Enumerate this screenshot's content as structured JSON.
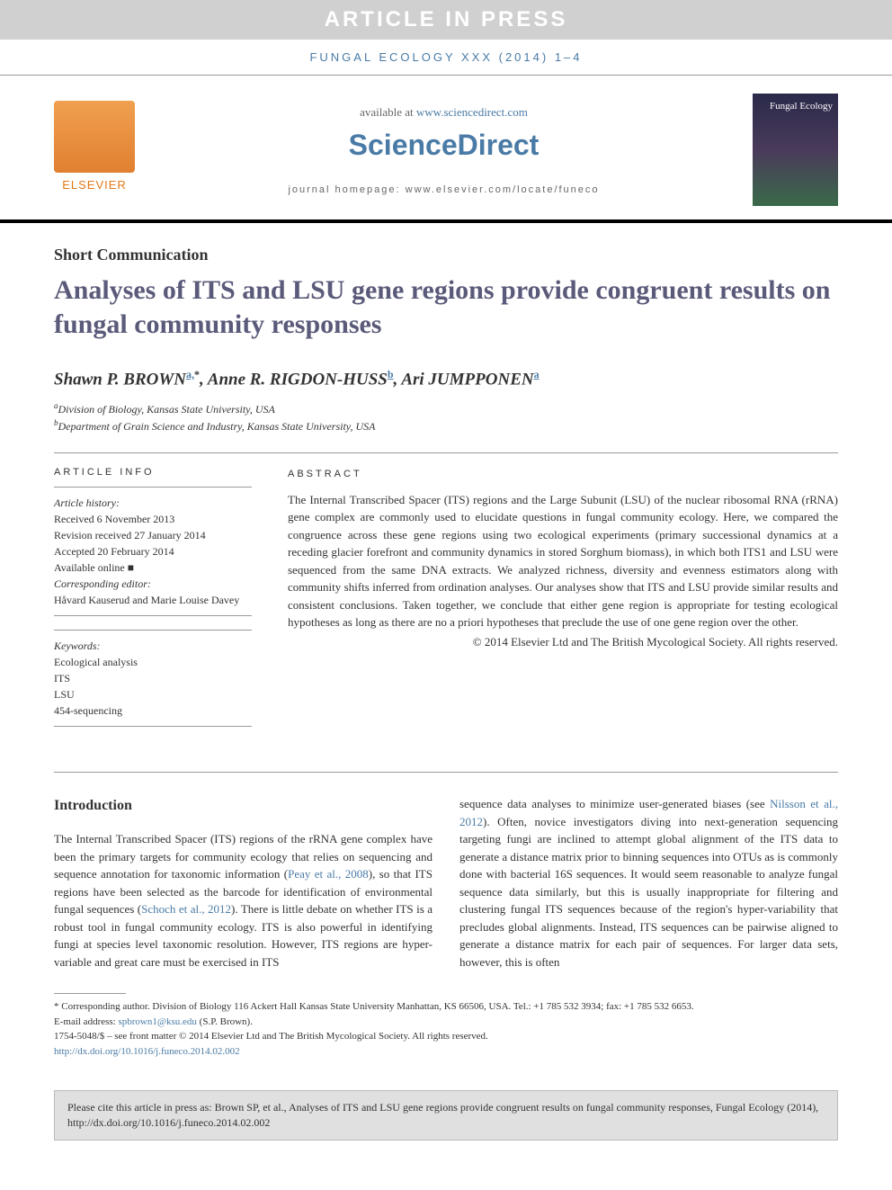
{
  "banner": {
    "in_press": "ARTICLE IN PRESS",
    "journal_ref": "FUNGAL ECOLOGY XXX (2014) 1–4"
  },
  "header": {
    "available_prefix": "available at ",
    "available_link": "www.sciencedirect.com",
    "sciencedirect": "ScienceDirect",
    "homepage_label": "journal homepage: ",
    "homepage_url": "www.elsevier.com/locate/funeco",
    "elsevier": "ELSEVIER",
    "cover_title": "Fungal Ecology"
  },
  "article": {
    "type": "Short Communication",
    "title": "Analyses of ITS and LSU gene regions provide congruent results on fungal community responses",
    "authors": [
      {
        "name": "Shawn P. BROWN",
        "affil": "a,",
        "corr": "*"
      },
      {
        "name": "Anne R. RIGDON-HUSS",
        "affil": "b",
        "corr": ""
      },
      {
        "name": "Ari JUMPPONEN",
        "affil": "a",
        "corr": ""
      }
    ],
    "affiliations": [
      {
        "sup": "a",
        "text": "Division of Biology, Kansas State University, USA"
      },
      {
        "sup": "b",
        "text": "Department of Grain Science and Industry, Kansas State University, USA"
      }
    ]
  },
  "info": {
    "heading": "ARTICLE INFO",
    "history_label": "Article history:",
    "received": "Received 6 November 2013",
    "revision": "Revision received 27 January 2014",
    "accepted": "Accepted 20 February 2014",
    "available": "Available online ■",
    "corr_editor_label": "Corresponding editor:",
    "corr_editor": "Håvard Kauserud and Marie Louise Davey",
    "keywords_label": "Keywords:",
    "keywords": [
      "Ecological analysis",
      "ITS",
      "LSU",
      "454-sequencing"
    ]
  },
  "abstract": {
    "heading": "ABSTRACT",
    "text": "The Internal Transcribed Spacer (ITS) regions and the Large Subunit (LSU) of the nuclear ribosomal RNA (rRNA) gene complex are commonly used to elucidate questions in fungal community ecology. Here, we compared the congruence across these gene regions using two ecological experiments (primary successional dynamics at a receding glacier forefront and community dynamics in stored Sorghum biomass), in which both ITS1 and LSU were sequenced from the same DNA extracts. We analyzed richness, diversity and evenness estimators along with community shifts inferred from ordination analyses. Our analyses show that ITS and LSU provide similar results and consistent conclusions. Taken together, we conclude that either gene region is appropriate for testing ecological hypotheses as long as there are no a priori hypotheses that preclude the use of one gene region over the other.",
    "copyright": "© 2014 Elsevier Ltd and The British Mycological Society. All rights reserved."
  },
  "body": {
    "intro_heading": "Introduction",
    "col1_a": "The Internal Transcribed Spacer (ITS) regions of the rRNA gene complex have been the primary targets for community ecology that relies on sequencing and sequence annotation for taxonomic information (",
    "col1_link1": "Peay et al., 2008",
    "col1_b": "), so that ITS regions have been selected as the barcode for identification of environmental fungal sequences (",
    "col1_link2": "Schoch et al., 2012",
    "col1_c": "). There is little debate on whether ITS is a robust tool in fungal community ecology. ITS is also powerful in identifying fungi at species level taxonomic resolution. However, ITS regions are hyper-variable and great care must be exercised in ITS",
    "col2_a": "sequence data analyses to minimize user-generated biases (see ",
    "col2_link1": "Nilsson et al., 2012",
    "col2_b": "). Often, novice investigators diving into next-generation sequencing targeting fungi are inclined to attempt global alignment of the ITS data to generate a distance matrix prior to binning sequences into OTUs as is commonly done with bacterial 16S sequences. It would seem reasonable to analyze fungal sequence data similarly, but this is usually inappropriate for filtering and clustering fungal ITS sequences because of the region's hyper-variability that precludes global alignments. Instead, ITS sequences can be pairwise aligned to generate a distance matrix for each pair of sequences. For larger data sets, however, this is often"
  },
  "footer": {
    "corr_label": "* Corresponding author.",
    "corr_text": " Division of Biology 116 Ackert Hall Kansas State University Manhattan, KS 66506, USA. Tel.: +1 785 532 3934; fax: +1 785 532 6653.",
    "email_label": "E-mail address: ",
    "email": "spbrown1@ksu.edu",
    "email_suffix": " (S.P. Brown).",
    "issn": "1754-5048/$ – see front matter © 2014 Elsevier Ltd and The British Mycological Society. All rights reserved.",
    "doi": "http://dx.doi.org/10.1016/j.funeco.2014.02.002"
  },
  "citation": {
    "text": "Please cite this article in press as: Brown SP, et al., Analyses of ITS and LSU gene regions provide congruent results on fungal community responses, Fungal Ecology (2014), http://dx.doi.org/10.1016/j.funeco.2014.02.002"
  },
  "colors": {
    "blue_link": "#4a7ba6",
    "title_color": "#5a5a7a",
    "elsevier_orange": "#e67817",
    "banner_bg": "#d0d0d0",
    "citation_bg": "#e0e0e0"
  }
}
